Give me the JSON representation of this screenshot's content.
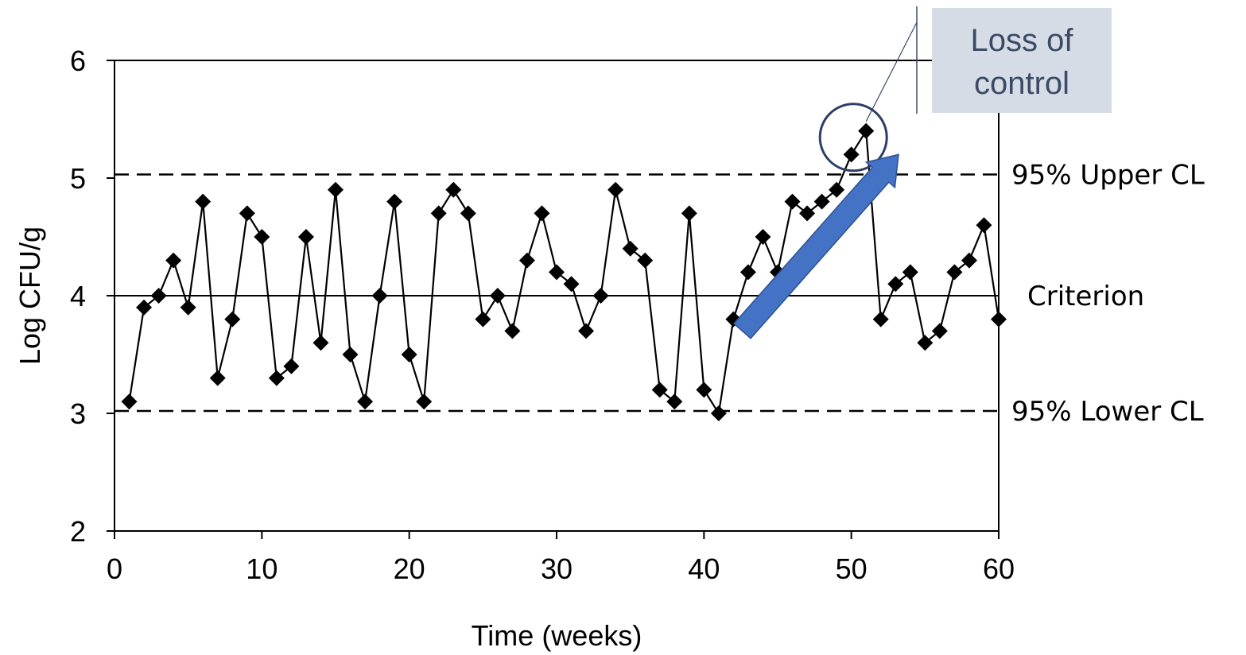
{
  "chart_data": {
    "type": "line",
    "xlabel": "Time (weeks)",
    "ylabel": "Log CFU/g",
    "xlim": [
      0,
      60
    ],
    "ylim": [
      2,
      6
    ],
    "x_ticks": [
      "0",
      "10",
      "20",
      "30",
      "40",
      "50",
      "60"
    ],
    "y_ticks": [
      "2",
      "3",
      "4",
      "5",
      "6"
    ],
    "grid": false,
    "series": [
      {
        "marker": "diamond",
        "color": "#000000",
        "x": [
          1,
          2,
          3,
          4,
          5,
          6,
          7,
          8,
          9,
          10,
          11,
          12,
          13,
          14,
          15,
          16,
          17,
          18,
          19,
          20,
          21,
          22,
          23,
          24,
          25,
          26,
          27,
          28,
          29,
          30,
          31,
          32,
          33,
          34,
          35,
          36,
          37,
          38,
          39,
          40,
          41,
          42,
          43,
          44,
          45,
          46,
          47,
          48,
          49,
          50,
          51,
          52,
          53,
          54,
          55,
          56,
          57,
          58,
          59,
          60
        ],
        "values": [
          3.1,
          3.9,
          4.0,
          4.3,
          3.9,
          4.8,
          3.3,
          3.8,
          4.7,
          4.5,
          3.3,
          3.4,
          4.5,
          3.6,
          4.9,
          3.5,
          3.1,
          4.0,
          4.8,
          3.5,
          3.1,
          4.7,
          4.9,
          4.7,
          3.8,
          4.0,
          3.7,
          4.3,
          4.7,
          4.2,
          4.1,
          3.7,
          4.0,
          4.9,
          4.4,
          4.3,
          3.2,
          3.1,
          4.7,
          3.2,
          3.0,
          3.8,
          4.2,
          4.5,
          4.2,
          4.8,
          4.7,
          4.8,
          4.9,
          5.2,
          5.4,
          3.8,
          4.1,
          4.2,
          3.6,
          3.7,
          4.2,
          4.3,
          4.6,
          3.8
        ]
      }
    ],
    "reference_lines": [
      {
        "label": "95% Upper CL",
        "value": 5.03,
        "style": "dashed"
      },
      {
        "label": "Criterion",
        "value": 4.0,
        "style": "solid"
      },
      {
        "label": "95% Lower CL",
        "value": 3.02,
        "style": "dashed"
      }
    ],
    "annotation": {
      "text_line1": "Loss of",
      "text_line2": "control",
      "point_week": 51,
      "box_color": "#d5dce6",
      "text_color": "#3b4a66",
      "circle_color": "#2c3e63",
      "arrow_color": "#4472c4",
      "arrow_from": [
        42.6,
        3.7
      ],
      "arrow_to": [
        53.2,
        5.2
      ]
    }
  }
}
